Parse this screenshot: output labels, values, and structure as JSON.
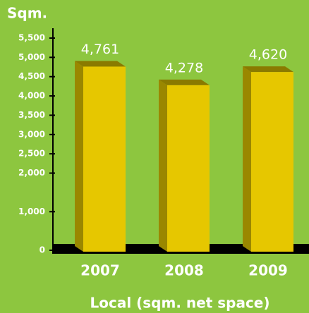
{
  "chart_data": {
    "type": "bar3d",
    "title": "Sqm.",
    "x_label": "Local (sqm. net space)",
    "categories": [
      "2007",
      "2008",
      "2009"
    ],
    "values": [
      4761,
      4278,
      4620
    ],
    "value_labels": [
      "4,761",
      "4,278",
      "4,620"
    ],
    "color": "#e6c700",
    "ylim": [
      0,
      5500
    ],
    "yticks": [
      0,
      {
        "value": 1000,
        "label": "1,000"
      },
      {
        "value": 2000,
        "label": "2,000"
      },
      {
        "value": 2500,
        "label": "2,500"
      },
      {
        "value": 3000,
        "label": "3,000"
      },
      {
        "value": 3500,
        "label": "3,500"
      },
      {
        "value": 4000,
        "label": "4,000"
      },
      {
        "value": 4500,
        "label": "4,500"
      },
      {
        "value": 5000,
        "label": "5,000"
      },
      {
        "value": 5500,
        "label": "5,500"
      }
    ]
  }
}
